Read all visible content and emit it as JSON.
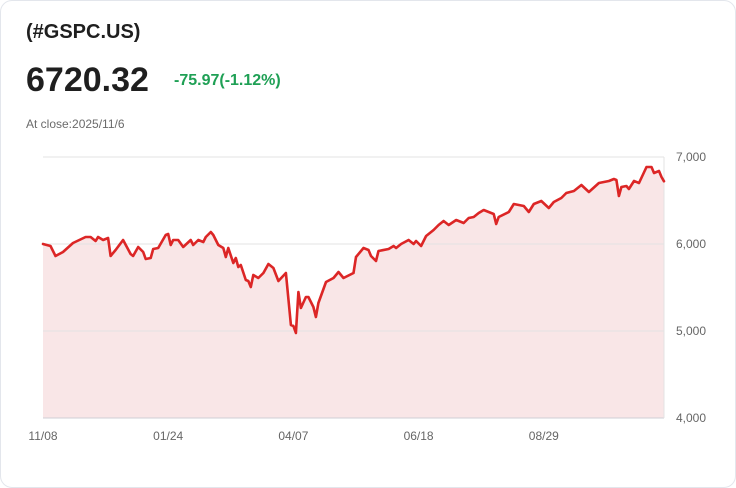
{
  "header": {
    "title": "(#GSPC.US)",
    "price": "6720.32",
    "change": "-75.97(-1.12%)",
    "close_label": "At close:2025/11/6"
  },
  "colors": {
    "line": "#dc2626",
    "fill": "#f9e6e7",
    "change": "#1fa055",
    "grid": "#e3e3e3"
  },
  "chart_data": {
    "type": "area",
    "title": "(#GSPC.US)",
    "xlabel": "",
    "ylabel": "",
    "x_unit": "trading day index since 11/08",
    "xlim": [
      0,
      248
    ],
    "ylim": [
      4000,
      7000
    ],
    "grid": true,
    "x_ticks": [
      {
        "x": 0,
        "label": "11/08"
      },
      {
        "x": 50,
        "label": "01/24"
      },
      {
        "x": 100,
        "label": "04/07"
      },
      {
        "x": 150,
        "label": "06/18"
      },
      {
        "x": 200,
        "label": "08/29"
      }
    ],
    "y_ticks": [
      {
        "y": 7000,
        "label": "7,000"
      },
      {
        "y": 6000,
        "label": "6,000"
      },
      {
        "y": 5000,
        "label": "5,000"
      },
      {
        "y": 4000,
        "label": "4,000"
      }
    ],
    "series": [
      {
        "name": "#GSPC.US",
        "x": [
          0,
          3,
          5,
          8,
          12,
          17,
          19,
          21,
          22,
          24,
          26,
          27,
          29,
          32,
          35,
          36,
          38,
          40,
          41,
          43,
          44,
          46,
          49,
          50,
          51,
          52,
          54,
          56,
          59,
          60,
          62,
          64,
          65,
          67,
          68,
          70,
          72,
          73,
          74,
          76,
          77,
          78,
          79,
          81,
          82,
          83,
          84,
          86,
          88,
          90,
          92,
          94,
          97,
          99,
          100,
          101,
          102,
          103,
          105,
          106,
          108,
          109,
          110,
          113,
          116,
          118,
          120,
          124,
          125,
          128,
          130,
          131,
          133,
          134,
          138,
          140,
          141,
          143,
          146,
          148,
          149,
          151,
          153,
          156,
          158,
          160,
          162,
          165,
          168,
          170,
          172,
          174,
          176,
          180,
          181,
          182,
          186,
          188,
          192,
          194,
          196,
          199,
          202,
          204,
          207,
          209,
          212,
          215,
          218,
          222,
          226,
          228,
          229,
          230,
          231,
          233,
          234,
          236,
          238,
          241,
          243,
          244,
          246,
          247,
          248
        ],
        "y": [
          6000,
          5977,
          5862,
          5908,
          6012,
          6080,
          6080,
          6034,
          6080,
          6046,
          6069,
          5862,
          5931,
          6046,
          5885,
          5862,
          5966,
          5908,
          5828,
          5839,
          5943,
          5954,
          6103,
          6115,
          5989,
          6046,
          6046,
          5966,
          6046,
          5989,
          6046,
          6023,
          6080,
          6138,
          6103,
          5989,
          5954,
          5851,
          5954,
          5782,
          5839,
          5736,
          5759,
          5586,
          5575,
          5506,
          5644,
          5609,
          5667,
          5770,
          5724,
          5575,
          5667,
          5069,
          5058,
          4977,
          5448,
          5264,
          5391,
          5391,
          5276,
          5161,
          5322,
          5563,
          5609,
          5678,
          5609,
          5667,
          5851,
          5954,
          5931,
          5862,
          5805,
          5920,
          5943,
          5977,
          5954,
          6000,
          6046,
          6000,
          6034,
          5977,
          6092,
          6161,
          6218,
          6264,
          6218,
          6276,
          6241,
          6299,
          6310,
          6356,
          6391,
          6345,
          6230,
          6310,
          6368,
          6460,
          6437,
          6368,
          6460,
          6494,
          6414,
          6483,
          6529,
          6586,
          6609,
          6678,
          6598,
          6701,
          6724,
          6747,
          6736,
          6552,
          6655,
          6667,
          6632,
          6724,
          6701,
          6885,
          6885,
          6816,
          6839,
          6770,
          6720.32
        ]
      }
    ]
  }
}
